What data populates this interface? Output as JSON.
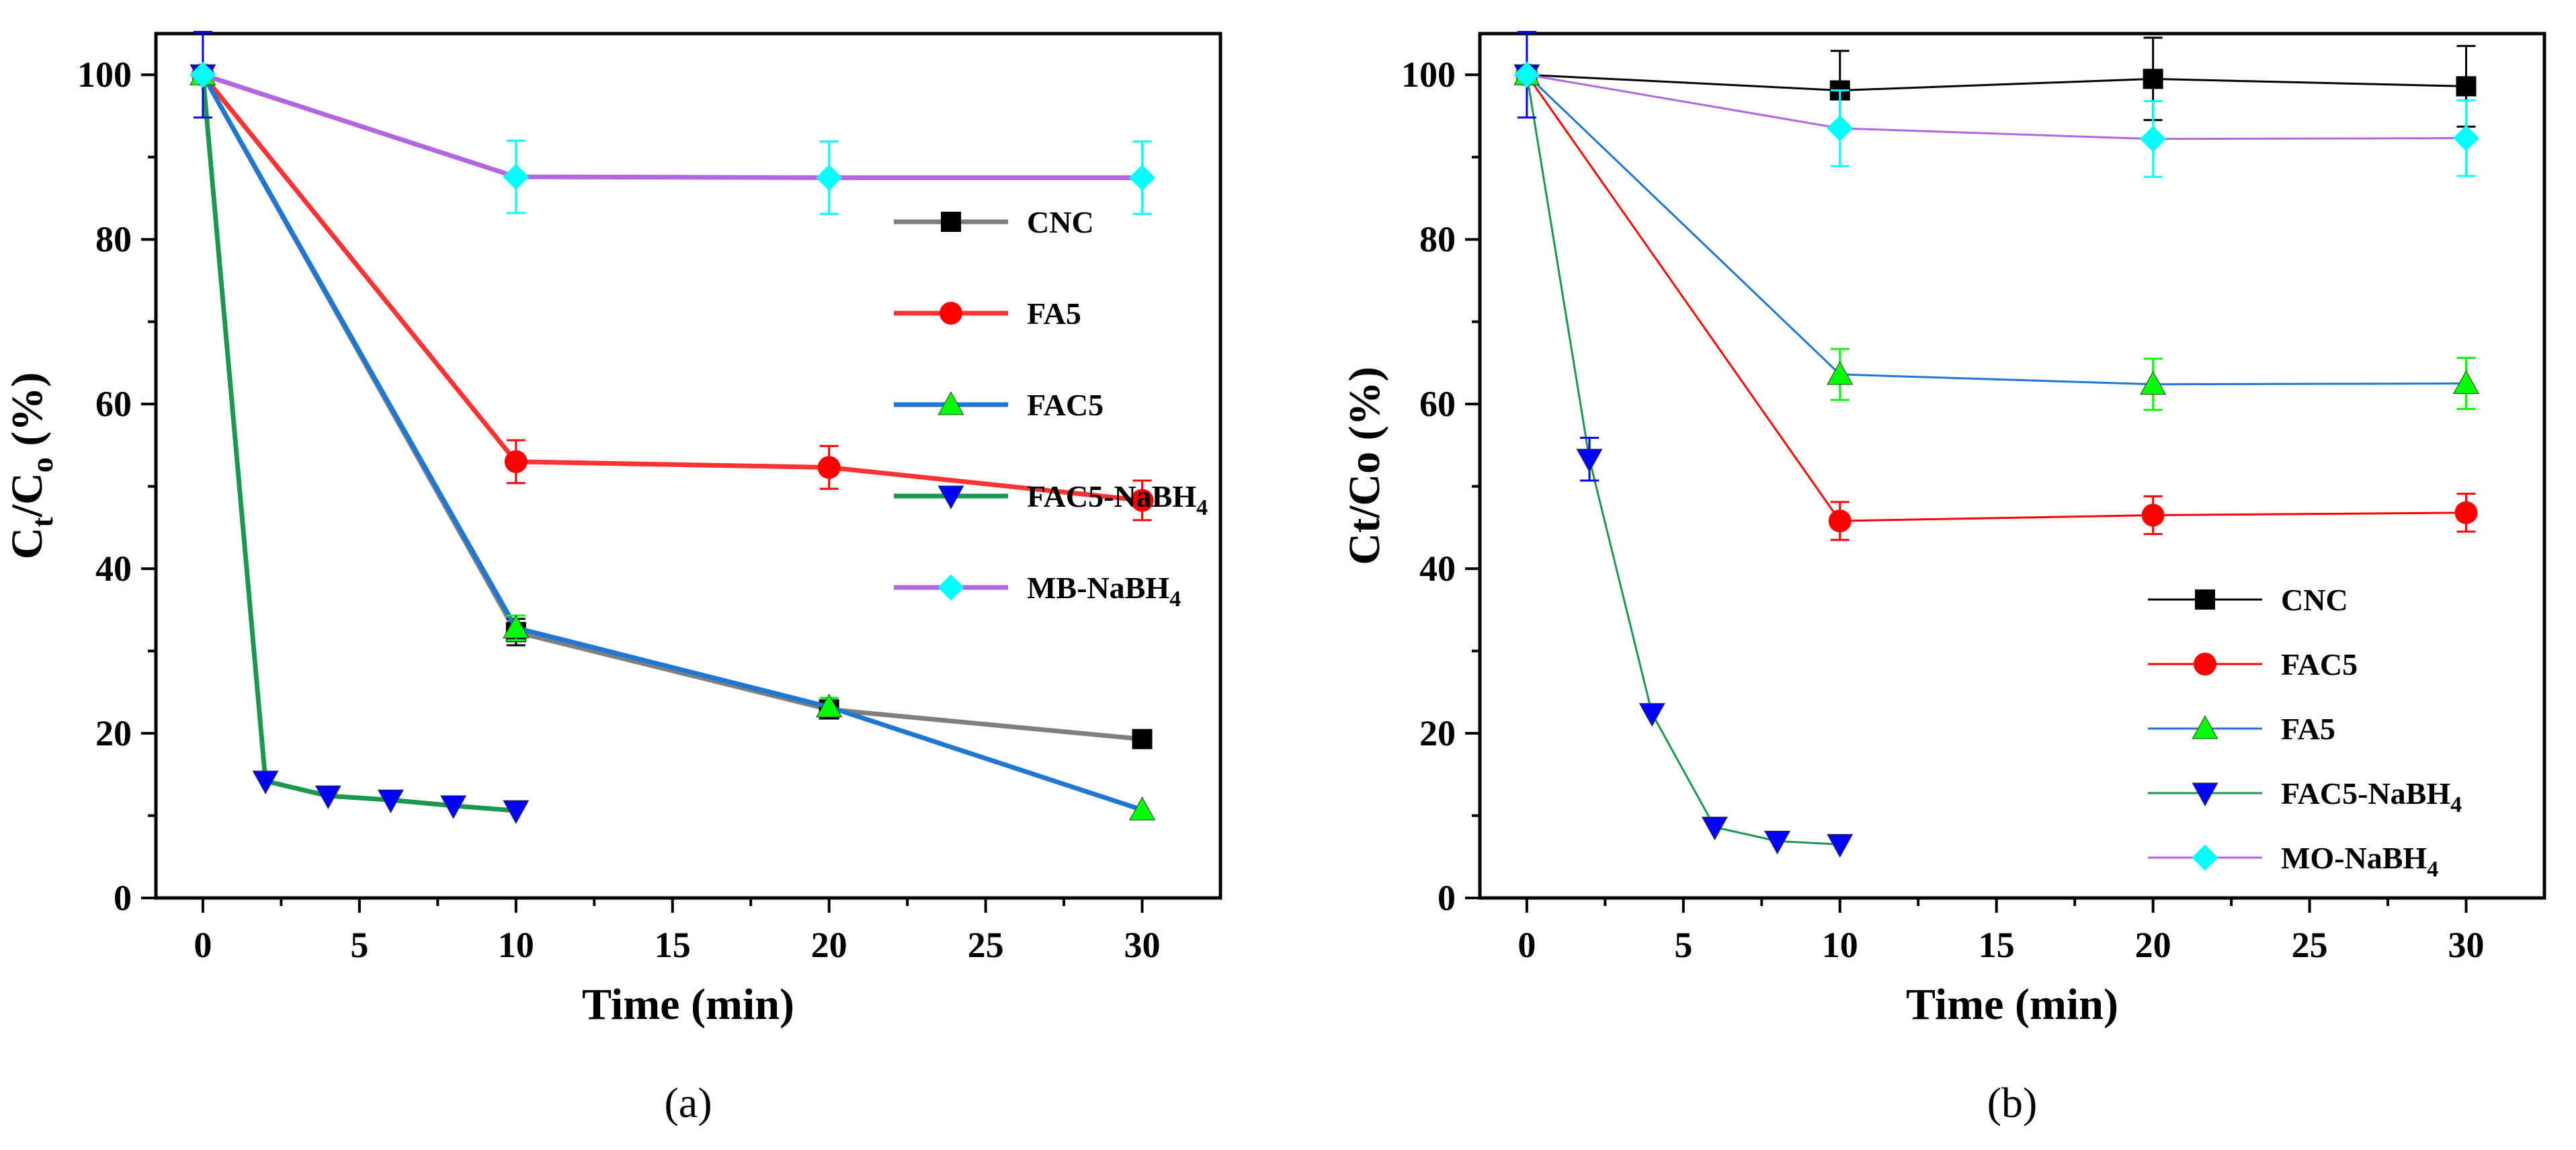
{
  "chart_data": [
    {
      "id": "a",
      "type": "line",
      "panel_label": "(a)",
      "xlabel": "Time (min)",
      "ylabel": "Ct/C0 (%)",
      "ylabel_parts": {
        "main1": "C",
        "sub1": "t",
        "slash": "/C",
        "sub2": "o",
        "rest": " (%)"
      },
      "xlim": [
        -1.5,
        32.5
      ],
      "ylim": [
        0,
        105
      ],
      "xticks": [
        0,
        5,
        10,
        15,
        20,
        25,
        30
      ],
      "yticks": [
        0,
        20,
        40,
        60,
        80,
        100
      ],
      "grid": false,
      "legend_position": "center-right",
      "series": [
        {
          "name": "CNC",
          "label_main": "CNC",
          "label_sub": "",
          "color": "#000000",
          "line_color": "#7f7f7f",
          "marker": "square",
          "x": [
            0,
            10,
            20,
            30
          ],
          "y": [
            100,
            32.3,
            22.9,
            19.3
          ],
          "err": [
            0,
            1.6,
            1.1,
            0
          ]
        },
        {
          "name": "FA5",
          "label_main": "FA5",
          "label_sub": "",
          "color": "#ff0000",
          "line_color": "#ff3333",
          "marker": "circle",
          "x": [
            0,
            10,
            20,
            30
          ],
          "y": [
            100,
            53.0,
            52.3,
            48.3
          ],
          "err": [
            0,
            2.6,
            2.6,
            2.4
          ]
        },
        {
          "name": "FAC5",
          "label_main": "FAC5",
          "label_sub": "",
          "color": "#00ff00",
          "line_color": "#1f77d4",
          "marker": "triangle-up",
          "x": [
            0,
            10,
            20,
            30
          ],
          "y": [
            100,
            32.8,
            23.2,
            10.7
          ],
          "err": [
            0,
            1.5,
            1.1,
            0
          ]
        },
        {
          "name": "FAC5-NaBH4",
          "label_main": "FAC5-NaBH",
          "label_sub": "4",
          "color": "#0000ff",
          "line_color": "#1a9850",
          "marker": "triangle-down",
          "x": [
            0,
            2,
            4,
            6,
            8,
            10
          ],
          "y": [
            100,
            14.2,
            12.4,
            11.9,
            11.2,
            10.6
          ],
          "err": [
            5.2,
            0,
            0,
            0,
            0,
            0
          ]
        },
        {
          "name": "MB-NaBH4",
          "label_main": "MB-NaBH",
          "label_sub": "4",
          "color": "#00ffff",
          "line_color": "#b266e0",
          "marker": "diamond",
          "x": [
            0,
            10,
            20,
            30
          ],
          "y": [
            100,
            87.6,
            87.5,
            87.5
          ],
          "err": [
            0,
            4.4,
            4.4,
            4.4
          ]
        }
      ]
    },
    {
      "id": "b",
      "type": "line",
      "panel_label": "(b)",
      "xlabel": "Time (min)",
      "ylabel": "Ct/Co (%)",
      "xlim": [
        -1.5,
        32.5
      ],
      "ylim": [
        0,
        105
      ],
      "xticks": [
        0,
        5,
        10,
        15,
        20,
        25,
        30
      ],
      "yticks": [
        0,
        20,
        40,
        60,
        80,
        100
      ],
      "grid": false,
      "legend_position": "bottom-right",
      "series": [
        {
          "name": "CNC",
          "label_main": "CNC",
          "label_sub": "",
          "color": "#000000",
          "line_color": "#000000",
          "marker": "square",
          "x": [
            0,
            10,
            20,
            30
          ],
          "y": [
            100,
            98.1,
            99.5,
            98.6
          ],
          "err": [
            0,
            4.8,
            5.0,
            4.9
          ]
        },
        {
          "name": "FAC5",
          "label_main": "FAC5",
          "label_sub": "",
          "color": "#ff0000",
          "line_color": "#ff0000",
          "marker": "circle",
          "x": [
            0,
            10,
            20,
            30
          ],
          "y": [
            100,
            45.8,
            46.5,
            46.8
          ],
          "err": [
            0,
            2.3,
            2.3,
            2.3
          ]
        },
        {
          "name": "FA5",
          "label_main": "FA5",
          "label_sub": "",
          "color": "#00ff00",
          "line_color": "#1f77d4",
          "marker": "triangle-up",
          "x": [
            0,
            10,
            20,
            30
          ],
          "y": [
            100,
            63.6,
            62.4,
            62.5
          ],
          "err": [
            0,
            3.1,
            3.1,
            3.1
          ]
        },
        {
          "name": "FAC5-NaBH4",
          "label_main": "FAC5-NaBH",
          "label_sub": "4",
          "color": "#0000ff",
          "line_color": "#1a9850",
          "marker": "triangle-down",
          "x": [
            0,
            2,
            4,
            6,
            8,
            10
          ],
          "y": [
            100,
            53.3,
            22.4,
            8.6,
            6.9,
            6.5
          ],
          "err": [
            5.2,
            2.6,
            0,
            0,
            0,
            0
          ]
        },
        {
          "name": "MO-NaBH4",
          "label_main": "MO-NaBH",
          "label_sub": "4",
          "color": "#00ffff",
          "line_color": "#b266e0",
          "marker": "diamond",
          "x": [
            0,
            10,
            20,
            30
          ],
          "y": [
            100,
            93.5,
            92.2,
            92.3
          ],
          "err": [
            0,
            4.6,
            4.6,
            4.6
          ]
        }
      ]
    }
  ]
}
